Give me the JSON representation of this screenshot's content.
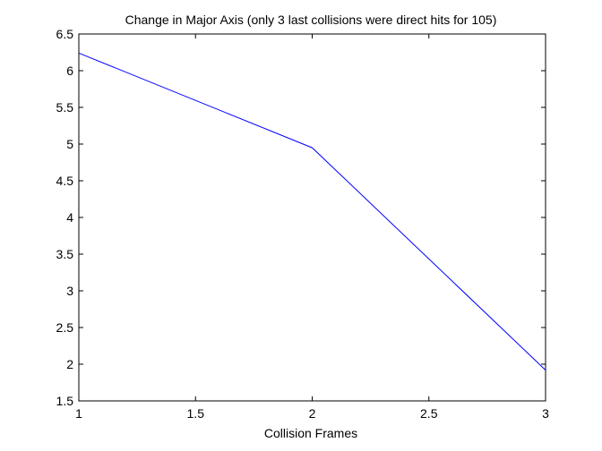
{
  "chart_data": {
    "type": "line",
    "title": "Change in Major Axis (only 3 last collisions were direct hits for 105)",
    "xlabel": "Collision Frames",
    "ylabel": "",
    "xlim": [
      1,
      3
    ],
    "ylim": [
      1.5,
      6.5
    ],
    "x_ticks": [
      "1",
      "1.5",
      "2",
      "2.5",
      "3"
    ],
    "y_ticks": [
      "1.5",
      "2",
      "2.5",
      "3",
      "3.5",
      "4",
      "4.5",
      "5",
      "5.5",
      "6",
      "6.5"
    ],
    "grid": false,
    "series": [
      {
        "x": [
          1,
          2,
          3
        ],
        "values": [
          6.24,
          4.95,
          1.92
        ],
        "color": "#0000ff"
      }
    ]
  }
}
